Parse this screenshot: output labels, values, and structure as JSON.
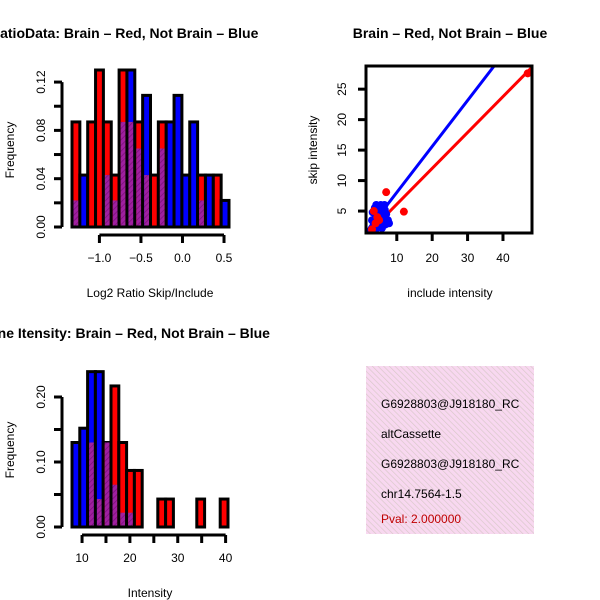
{
  "colors": {
    "red": "#ff0000",
    "blue": "#0000ff",
    "overlap": "#a020a0",
    "pval": "#c00000",
    "box_bg": "#f8d8f0"
  },
  "chart_data": [
    {
      "type": "bar",
      "title": "RatioData: Brain – Red, Not Brain – Blue",
      "xlabel": "Log2 Ratio Skip/Include",
      "ylabel": "Frequency",
      "bin_start": -1.33,
      "bin_width": 0.0945,
      "xlim": [
        -1.33,
        0.56
      ],
      "ylim": [
        0,
        0.13
      ],
      "xticks": [
        -1.0,
        -0.5,
        0.0,
        0.5
      ],
      "xtick_labels": [
        "−1.0",
        "−0.5",
        "0.0",
        "0.5"
      ],
      "yticks": [
        0,
        0.02,
        0.04,
        0.06,
        0.08,
        0.1,
        0.12
      ],
      "ytick_labels": [
        "0.00",
        "",
        "0.04",
        "",
        "0.08",
        "",
        "0.12"
      ],
      "series": [
        {
          "name": "Brain",
          "color": "red",
          "values": [
            0.087,
            0,
            0.087,
            0.13,
            0.087,
            0.043,
            0.13,
            0.087,
            0.087,
            0.043,
            0.043,
            0.087,
            0,
            0,
            0,
            0,
            0.043,
            0,
            0.043,
            0
          ]
        },
        {
          "name": "Not Brain",
          "color": "blue",
          "values": [
            0.022,
            0.043,
            0,
            0,
            0.043,
            0.022,
            0.087,
            0.13,
            0.065,
            0.109,
            0,
            0.065,
            0.087,
            0.109,
            0.043,
            0.087,
            0.022,
            0.043,
            0,
            0.022
          ]
        }
      ]
    },
    {
      "type": "scatter",
      "title": "Brain – Red, Not Brain – Blue",
      "xlabel": "include intensity",
      "ylabel": "skip intensity",
      "xlim": [
        1.3,
        48.2
      ],
      "ylim": [
        1.4,
        28.8
      ],
      "xticks": [
        10,
        20,
        30,
        40
      ],
      "yticks": [
        5,
        10,
        15,
        20,
        25
      ],
      "series": [
        {
          "name": "Brain",
          "color": "red",
          "points": [
            [
              47,
              27.6
            ],
            [
              7,
              8.1
            ],
            [
              12,
              4.9
            ],
            [
              3,
              2
            ],
            [
              4,
              3
            ],
            [
              5,
              3.5
            ],
            [
              3.5,
              5
            ],
            [
              4.5,
              4
            ]
          ],
          "fit_line": [
            [
              1.3,
              1.0
            ],
            [
              48.2,
              28.6
            ]
          ]
        },
        {
          "name": "Not Brain",
          "color": "blue",
          "points": [
            [
              3,
              2.2
            ],
            [
              3.5,
              3
            ],
            [
              4,
              4
            ],
            [
              4.5,
              5
            ],
            [
              5,
              5.8
            ],
            [
              5.5,
              6
            ],
            [
              6,
              5.5
            ],
            [
              6.5,
              6
            ],
            [
              7,
              4.5
            ],
            [
              7.5,
              3.5
            ],
            [
              6,
              3
            ],
            [
              5,
              2.5
            ],
            [
              4,
              2
            ],
            [
              3,
              3.5
            ],
            [
              3.2,
              4.8
            ],
            [
              3.8,
              5.5
            ],
            [
              4.2,
              6
            ],
            [
              5.2,
              4.2
            ],
            [
              6.2,
              4.2
            ],
            [
              6.8,
              2.8
            ],
            [
              7.8,
              3
            ],
            [
              5.8,
              2.2
            ],
            [
              4.8,
              3.2
            ],
            [
              3.4,
              2.6
            ],
            [
              4.4,
              5.2
            ],
            [
              5.6,
              5
            ],
            [
              6.6,
              5.2
            ]
          ],
          "fit_line": [
            [
              1.3,
              1.5
            ],
            [
              37.5,
              28.8
            ]
          ]
        }
      ]
    },
    {
      "type": "bar",
      "title": "Gene Itensity: Brain – Red, Not Brain – Blue",
      "xlabel": "Intensity",
      "ylabel": "Frequency",
      "bin_start": 7.9,
      "bin_width": 1.63,
      "xlim": [
        7.9,
        40.5
      ],
      "ylim": [
        0,
        0.24
      ],
      "xticks": [
        10,
        15,
        20,
        25,
        30,
        35,
        40
      ],
      "xtick_labels": [
        "10",
        "",
        "20",
        "",
        "30",
        "",
        "40"
      ],
      "yticks": [
        0,
        0.05,
        0.1,
        0.15,
        0.2
      ],
      "ytick_labels": [
        "0.00",
        "",
        "0.10",
        "",
        "0.20"
      ],
      "series": [
        {
          "name": "Brain",
          "color": "red",
          "values": [
            0,
            0,
            0.13,
            0.043,
            0.13,
            0.217,
            0.13,
            0.087,
            0.087,
            0,
            0,
            0.043,
            0.043,
            0,
            0,
            0,
            0.043,
            0,
            0,
            0.043
          ]
        },
        {
          "name": "Not Brain",
          "color": "blue",
          "values": [
            0.13,
            0.152,
            0.239,
            0.239,
            0.13,
            0.065,
            0.022,
            0.022,
            0,
            0,
            0,
            0,
            0,
            0,
            0,
            0,
            0,
            0,
            0,
            0
          ]
        }
      ]
    }
  ],
  "info_box": {
    "lines": [
      "G6928803@J918180_RC",
      "altCassette",
      "G6928803@J918180_RC",
      "chr14.7564-1.5"
    ],
    "pval": "Pval: 2.000000"
  }
}
